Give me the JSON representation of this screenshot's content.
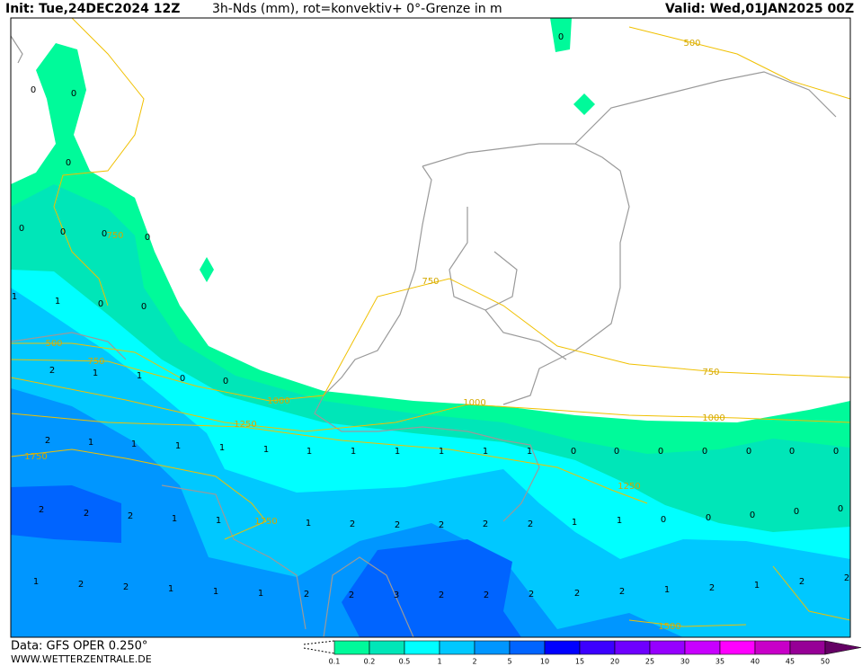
{
  "header": {
    "init": "Init: Tue,24DEC2024 12Z",
    "title": "3h-Nds (mm), rot=konvektiv+ 0°-Grenze in m",
    "valid": "Valid: Wed,01JAN2025 00Z"
  },
  "footer": {
    "data": "Data: GFS OPER 0.250°",
    "site": "WWW.WETTERZENTRALE.DE"
  },
  "map": {
    "grid_values": [
      0,
      0,
      0,
      0,
      0,
      0,
      0,
      0,
      1,
      1,
      0,
      0,
      2,
      1,
      1,
      0,
      0,
      2,
      1,
      1,
      1,
      1,
      1,
      1,
      1,
      1,
      1,
      1,
      1,
      0,
      0,
      0,
      0,
      0,
      0,
      0,
      2,
      2,
      2,
      1,
      1,
      1,
      2,
      2,
      2,
      2,
      2,
      1,
      1,
      0,
      0,
      0,
      0,
      0,
      1,
      2,
      2,
      1,
      1,
      1,
      2,
      2,
      3,
      2,
      2,
      2,
      2,
      2,
      1,
      2,
      1,
      2,
      2
    ],
    "contour_labels": [
      500,
      750,
      750,
      500,
      750,
      1000,
      1250,
      1000,
      750,
      1000,
      1750,
      1250,
      1750,
      1500
    ]
  },
  "colorbar": {
    "ticks": [
      0.1,
      0.2,
      0.5,
      1,
      2,
      5,
      10,
      15,
      20,
      25,
      30,
      35,
      40,
      45,
      50
    ],
    "colors": [
      "#00fa9a",
      "#00e6b8",
      "#00ffff",
      "#00c8ff",
      "#0096ff",
      "#0064ff",
      "#0000ff",
      "#3c00ff",
      "#6e00ff",
      "#9600ff",
      "#c800ff",
      "#ff00ff",
      "#c800c8",
      "#960096",
      "#640064"
    ]
  }
}
